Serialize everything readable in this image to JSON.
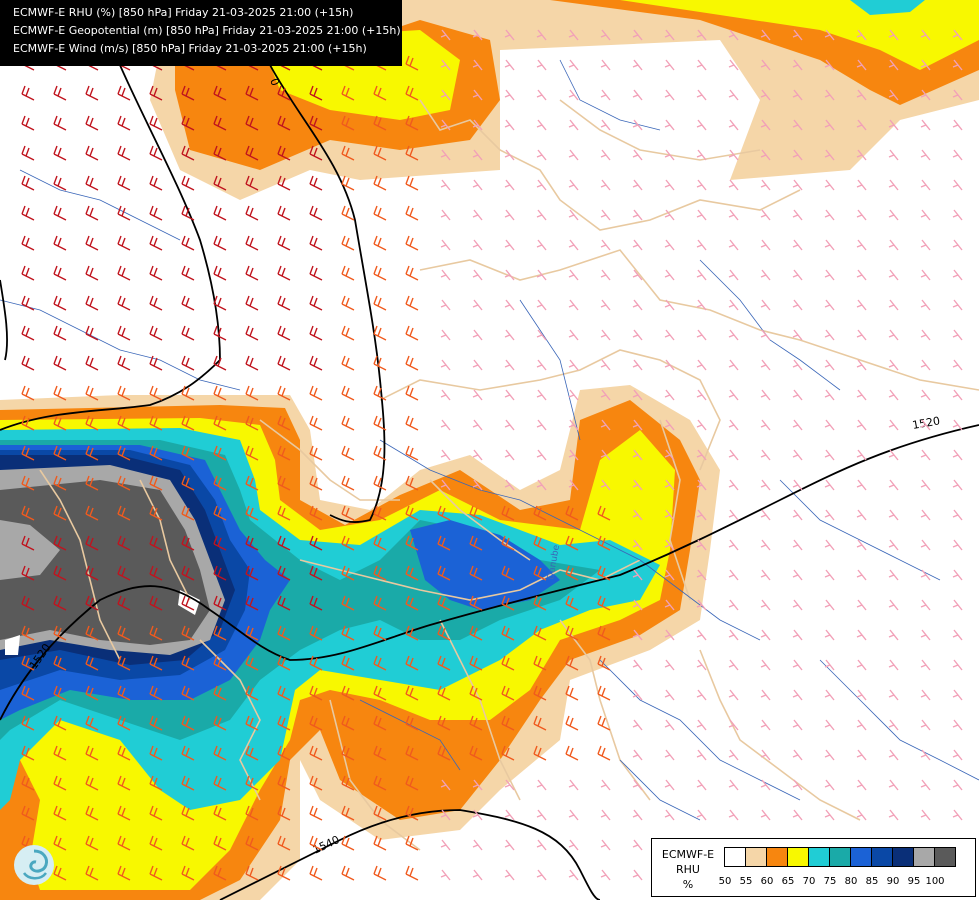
{
  "header": {
    "lines": [
      "ECMWF-E RHU (%) [850 hPa] Friday 21-03-2025 21:00 (+15h)",
      "ECMWF-E Geopotential (m) [850 hPa] Friday 21-03-2025 21:00 (+15h)",
      "ECMWF-E Wind (m/s) [850 hPa] Friday 21-03-2025 21:00 (+15h)"
    ]
  },
  "map": {
    "contour_labels": [
      "0",
      "1520",
      "1520",
      "1540"
    ],
    "river_label": "Danube",
    "colors": {
      "barb_dark": "#c0141e",
      "barb_orange": "#f05a1e",
      "barb_pink": "#f2a0b8",
      "country_border": "#e8c9a0",
      "river": "#3a66b8",
      "contour": "#000000"
    }
  },
  "legend": {
    "title_lines": [
      "ECMWF-E",
      "RHU",
      "%"
    ],
    "classes": [
      {
        "label": "50",
        "color": "#ffffff"
      },
      {
        "label": "55",
        "color": "#f5d6a8"
      },
      {
        "label": "60",
        "color": "#f7860f"
      },
      {
        "label": "65",
        "color": "#f8f800"
      },
      {
        "label": "70",
        "color": "#20cdd5"
      },
      {
        "label": "75",
        "color": "#1aaaa8"
      },
      {
        "label": "80",
        "color": "#1b62d6"
      },
      {
        "label": "85",
        "color": "#0a48a6"
      },
      {
        "label": "90",
        "color": "#0a2f78"
      },
      {
        "label": "95",
        "color": "#a8a8a8"
      },
      {
        "label": "100",
        "color": "#5a5a5a"
      }
    ]
  },
  "logo": {
    "icon": "ecmwf-logo-icon"
  }
}
